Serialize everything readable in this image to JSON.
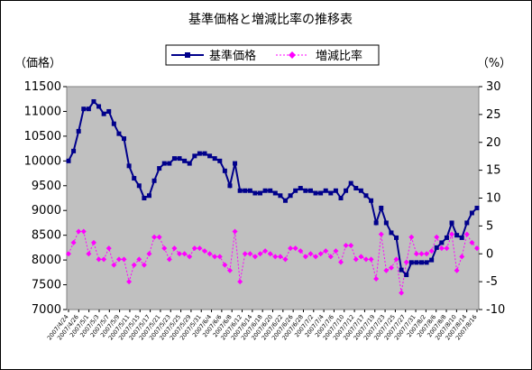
{
  "chart_data": {
    "type": "line",
    "title": "基準価格と増減比率の推移表",
    "y_left_label": "（価格）",
    "y_right_label": "（%）",
    "y_left_lim": [
      7000,
      11500
    ],
    "y_left_ticks": [
      7000,
      7500,
      8000,
      8500,
      9000,
      9500,
      10000,
      10500,
      11000,
      11500
    ],
    "y_right_lim": [
      -10,
      30
    ],
    "y_right_ticks": [
      -10,
      -5,
      0,
      5,
      10,
      15,
      20,
      25,
      30
    ],
    "grid": false,
    "legend_position": "top",
    "colors": {
      "plot_bg": "#c0c0c0",
      "price": "#00008b",
      "ratio": "#ff00ff"
    },
    "x_labels": [
      "2007/4/24",
      "2007/4/26",
      "2007/5/1",
      "2007/5/3",
      "2007/5/7",
      "2007/5/9",
      "2007/5/11",
      "2007/5/15",
      "2007/5/17",
      "2007/5/21",
      "2007/5/23",
      "2007/5/25",
      "2007/5/29",
      "2007/5/31",
      "2007/6/4",
      "2007/6/6",
      "2007/6/8",
      "2007/6/12",
      "2007/6/14",
      "2007/6/18",
      "2007/6/20",
      "2007/6/22",
      "2007/6/26",
      "2007/6/28",
      "2007/7/2",
      "2007/7/4",
      "2007/7/6",
      "2007/7/10",
      "2007/7/12",
      "2007/7/17",
      "2007/7/19",
      "2007/7/23",
      "2007/7/25",
      "2007/7/27",
      "2007/7/31",
      "2007/8/2",
      "2007/8/6",
      "2007/8/8",
      "2007/8/10",
      "2007/8/14",
      "2007/8/16"
    ],
    "series": [
      {
        "name": "基準価格",
        "axis": "left",
        "values": [
          10000,
          10200,
          10600,
          11050,
          11050,
          11200,
          11100,
          10950,
          11000,
          10750,
          10550,
          10450,
          9900,
          9650,
          9500,
          9250,
          9300,
          9600,
          9850,
          9950,
          9950,
          10050,
          10050,
          10000,
          9950,
          10100,
          10150,
          10150,
          10100,
          10050,
          10000,
          9800,
          9500,
          9950,
          9400,
          9400,
          9400,
          9350,
          9350,
          9400,
          9400,
          9350,
          9300,
          9200,
          9300,
          9400,
          9450,
          9400,
          9400,
          9350,
          9350,
          9400,
          9350,
          9400,
          9250,
          9400,
          9550,
          9450,
          9400,
          9300,
          9200,
          8750,
          9050,
          8750,
          8550,
          8450,
          7800,
          7700,
          7950,
          7950,
          7950,
          7950,
          8000,
          8250,
          8350,
          8450,
          8750,
          8500,
          8450,
          8750,
          8950,
          9050
        ]
      },
      {
        "name": "増減比率",
        "axis": "right",
        "values": [
          0,
          2,
          4,
          4,
          0,
          2,
          -1,
          -1,
          1,
          -2,
          -1,
          -1,
          -5,
          -2,
          -1,
          -2,
          0,
          3,
          3,
          1,
          -1,
          1,
          0,
          0,
          -0.5,
          1,
          1,
          0.5,
          0,
          -0.5,
          -0.5,
          -2,
          -3,
          4,
          -5,
          0,
          0,
          -0.5,
          0,
          0.5,
          0,
          -0.5,
          -0.5,
          -1,
          1,
          1,
          0.5,
          -0.5,
          0,
          -0.5,
          0,
          0.5,
          -0.5,
          0.5,
          -1.5,
          1.5,
          1.5,
          -1,
          -0.5,
          -1,
          -1,
          -4.5,
          3.5,
          -3,
          -2.5,
          -1,
          -7,
          -1.5,
          3,
          0,
          0,
          0,
          0.5,
          3,
          1,
          1,
          3.5,
          -3,
          -0.5,
          3.5,
          2,
          1
        ]
      }
    ]
  }
}
